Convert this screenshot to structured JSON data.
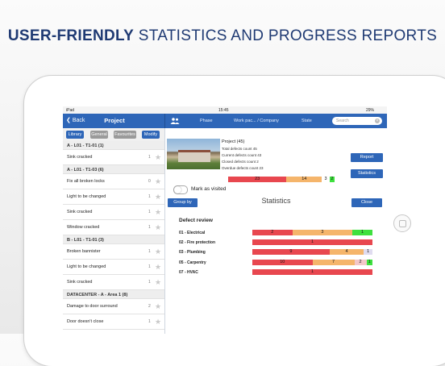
{
  "headline": {
    "bold": "USER-FRIENDLY",
    "rest": "STATISTICS AND PROGRESS REPORTS"
  },
  "status": {
    "carrier": "iPad",
    "time": "15:45",
    "battery": "29%"
  },
  "nav": {
    "back": "Back",
    "title": "Project",
    "col_phase": "Phase",
    "col_work": "Work pac... / Company",
    "col_state": "State",
    "search_placeholder": "Search"
  },
  "filters": [
    "Library",
    "General",
    "Favourites",
    "Modify"
  ],
  "list": [
    {
      "type": "head",
      "label": "A - L01 - T1-01 (1)"
    },
    {
      "type": "item",
      "label": "Sink cracked",
      "count": "1"
    },
    {
      "type": "head",
      "label": "A - L01 - T1-03 (6)"
    },
    {
      "type": "item",
      "label": "Fix all broken locks",
      "count": "0"
    },
    {
      "type": "item",
      "label": "Light to be changed",
      "count": "1"
    },
    {
      "type": "item",
      "label": "Sink cracked",
      "count": "1"
    },
    {
      "type": "item",
      "label": "Window cracked",
      "count": "1"
    },
    {
      "type": "head",
      "label": "B - L01 - T1-01 (3)"
    },
    {
      "type": "item",
      "label": "Broken bannister",
      "count": "1"
    },
    {
      "type": "item",
      "label": "Light to be changed",
      "count": "1"
    },
    {
      "type": "item",
      "label": "Sink cracked",
      "count": "1"
    },
    {
      "type": "head",
      "label": "DATACENTER - A - Area 1 (8)"
    },
    {
      "type": "item",
      "label": "Damage to door surround",
      "count": "2"
    },
    {
      "type": "item",
      "label": "Door doesn't close",
      "count": "1"
    }
  ],
  "project": {
    "title": "Project (45)",
    "lines": [
      "Total defects count  45",
      "Current defects count  43",
      "Closed defects count  2",
      "Overdue defects count  23"
    ],
    "report_button": "Report",
    "statistics_button": "Statistics",
    "mark_visited": "Mark as visited",
    "summary_bar": [
      {
        "value": 23,
        "label": "23",
        "color": "#e8474f"
      },
      {
        "value": 14,
        "label": "14",
        "color": "#f5b56b"
      },
      {
        "value": 3,
        "label": "3",
        "color": "#ffffff"
      },
      {
        "value": 2,
        "label": "2",
        "color": "#3ee03e"
      }
    ]
  },
  "stats": {
    "title": "Statistics",
    "group_by": "Group by",
    "close": "Close",
    "section": "Defect review",
    "rows": [
      {
        "name": "01 - Electrical",
        "segments": [
          {
            "v": 2,
            "label": "2",
            "color": "#e8474f"
          },
          {
            "v": 3,
            "label": "3",
            "color": "#f5b56b"
          },
          {
            "v": 1,
            "label": "1",
            "color": "#3ee03e"
          }
        ]
      },
      {
        "name": "02 - Fire protection",
        "segments": [
          {
            "v": 1,
            "label": "1",
            "color": "#e8474f"
          }
        ]
      },
      {
        "name": "03 - Plumbing",
        "segments": [
          {
            "v": 9,
            "label": "9",
            "color": "#e8474f"
          },
          {
            "v": 4,
            "label": "4",
            "color": "#f5b56b"
          },
          {
            "v": 1,
            "label": "1",
            "color": "#e0dcf0"
          }
        ]
      },
      {
        "name": "05 - Carpentry",
        "segments": [
          {
            "v": 10,
            "label": "10",
            "color": "#e8474f"
          },
          {
            "v": 7,
            "label": "7",
            "color": "#f5b56b"
          },
          {
            "v": 2,
            "label": "2",
            "color": "#f3c7c9"
          },
          {
            "v": 1,
            "label": "1",
            "color": "#3ee03e"
          }
        ]
      },
      {
        "name": "07 - HVAC",
        "segments": [
          {
            "v": 1,
            "label": "1",
            "color": "#e8474f"
          }
        ]
      }
    ]
  }
}
